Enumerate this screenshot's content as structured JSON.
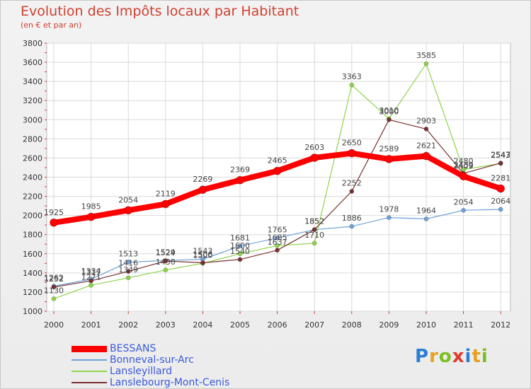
{
  "chart_data": {
    "type": "line",
    "title": "Evolution des Impôts locaux par Habitant",
    "subtitle": "(en € et par an)",
    "xlabel": "",
    "ylabel": "",
    "ylim": [
      1000,
      3800
    ],
    "yticks": [
      1000,
      1200,
      1400,
      1600,
      1800,
      2000,
      2200,
      2400,
      2600,
      2800,
      3000,
      3200,
      3400,
      3600,
      3800
    ],
    "categories": [
      "2000",
      "2001",
      "2002",
      "2003",
      "2004",
      "2005",
      "2006",
      "2007",
      "2008",
      "2009",
      "2010",
      "2011",
      "2012"
    ],
    "grid": true,
    "legend_position": "bottom-left",
    "series": [
      {
        "name": "BESSANS",
        "color": "#ff0000",
        "values": [
          1925,
          1985,
          2054,
          2119,
          2269,
          2369,
          2465,
          2603,
          2650,
          2589,
          2621,
          2409,
          2281
        ],
        "labels": [
          "1925",
          "1985",
          "2054",
          "2119",
          "2269",
          "2369",
          "2465",
          "2603",
          "2650",
          "2589",
          "2621",
          "2409",
          "2281"
        ]
      },
      {
        "name": "Bonneval-sur-Arc",
        "color": "#6fa2d8",
        "values": [
          1262,
          1334,
          1513,
          1529,
          1543,
          1681,
          1765,
          1852,
          1886,
          1978,
          1964,
          2054,
          2064
        ],
        "labels": [
          "1262",
          "1334",
          "1513",
          "1529",
          "1543",
          "1681",
          "1765",
          "1852",
          "1886",
          "1978",
          "1964",
          "2054",
          "2064"
        ]
      },
      {
        "name": "Lansleyillard",
        "color": "#8ed44a",
        "values": [
          1130,
          1271,
          1349,
          1430,
          1500,
          1600,
          1685,
          1710,
          3363,
          3010,
          3585,
          2480,
          2543
        ],
        "labels": [
          "1130",
          "1271",
          "1349",
          "1430",
          "1500",
          "1600",
          "1685",
          "1710",
          "3363",
          "3010",
          "3585",
          "2480",
          "2543"
        ]
      },
      {
        "name": "Lanslebourg-Mont-Cenis",
        "color": "#7a3030",
        "values": [
          1252,
          1317,
          1416,
          1524,
          1506,
          1540,
          1637,
          1852,
          2252,
          3000,
          2903,
          2439,
          2547
        ],
        "labels": [
          "1252",
          "1317",
          "1416",
          "1524",
          "1506",
          "1540",
          "1637",
          "1852",
          "2252",
          "3000",
          "2903",
          "2439",
          "2547"
        ]
      }
    ]
  },
  "legend": {
    "items": [
      "BESSANS",
      "Bonneval-sur-Arc",
      "Lansleyillard",
      "Lanslebourg-Mont-Cenis"
    ]
  },
  "logo": {
    "letters": [
      "P",
      "r",
      "o",
      "x",
      "i",
      "t",
      "i"
    ],
    "colors": [
      "#2a7fd4",
      "#e8a020",
      "#7ac020",
      "#e03a2a",
      "#2a7fd4",
      "#e8a020",
      "#7ac020"
    ]
  }
}
